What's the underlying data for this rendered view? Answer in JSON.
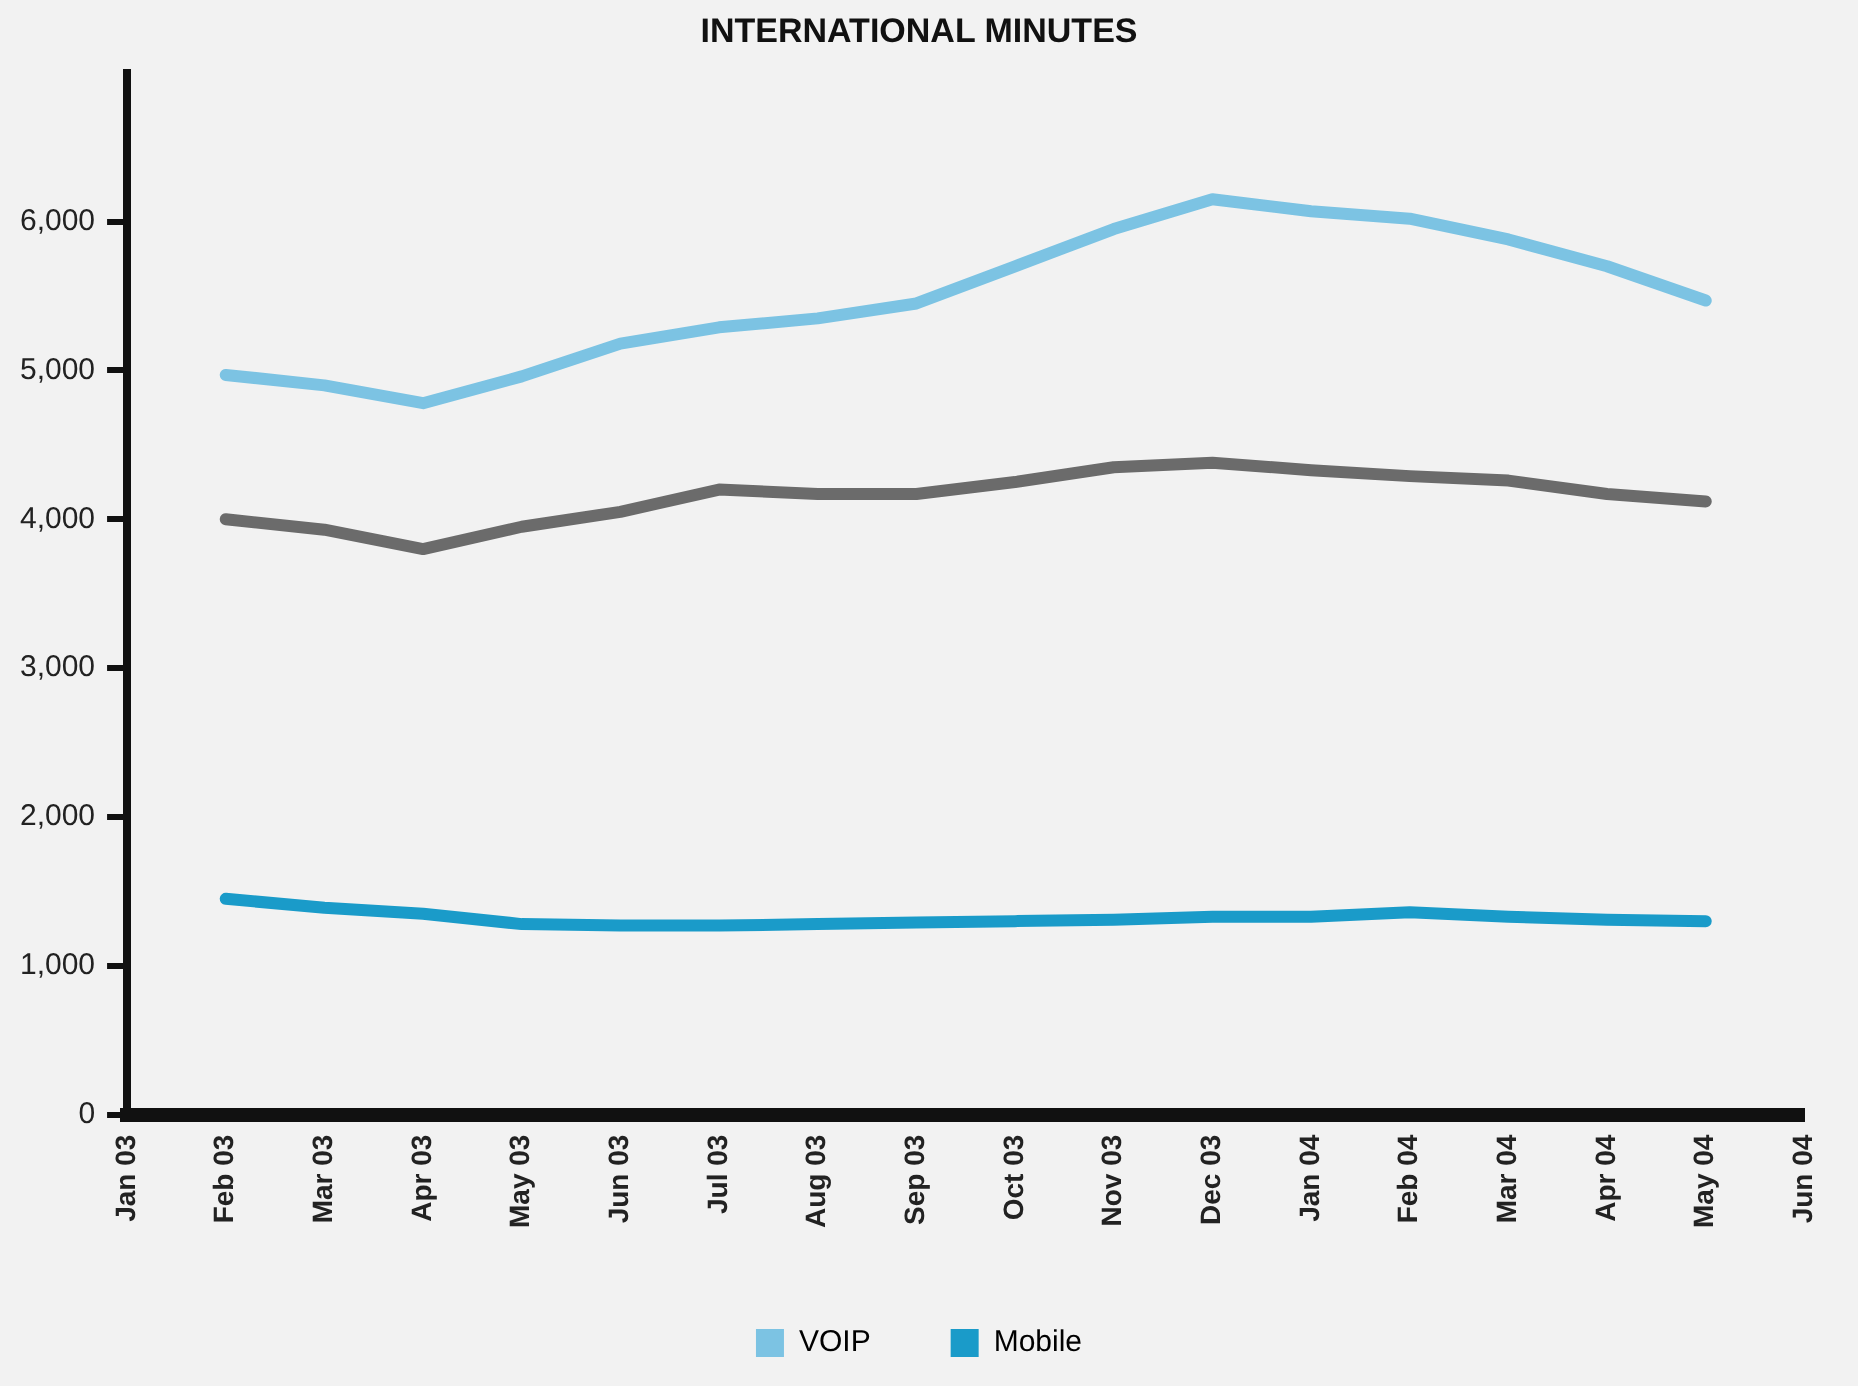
{
  "chart_data": {
    "type": "line",
    "title": "INTERNATIONAL MINUTES",
    "categories": [
      "Jan 03",
      "Feb 03",
      "Mar 03",
      "Apr 03",
      "May 03",
      "Jun 03",
      "Jul 03",
      "Aug 03",
      "Sep 03",
      "Oct 03",
      "Nov 03",
      "Dec 03",
      "Jan 04",
      "Feb 04",
      "Mar 04",
      "Apr 04",
      "May 04",
      "Jun 04"
    ],
    "series": [
      {
        "name": "VOIP",
        "color": "#7cc3e3",
        "values": [
          null,
          4970,
          4900,
          4780,
          4960,
          5180,
          5290,
          5350,
          5450,
          5700,
          5950,
          6150,
          6070,
          6020,
          5880,
          5700,
          5470,
          null
        ]
      },
      {
        "color": "#6b6b6b",
        "values": [
          null,
          4000,
          3930,
          3800,
          3950,
          4050,
          4200,
          4170,
          4170,
          4250,
          4350,
          4380,
          4330,
          4290,
          4260,
          4170,
          4120,
          null
        ]
      },
      {
        "name": "Mobile",
        "color": "#1a9bc9",
        "values": [
          null,
          1450,
          1390,
          1350,
          1280,
          1270,
          1270,
          1280,
          1290,
          1300,
          1310,
          1330,
          1330,
          1360,
          1330,
          1310,
          1300,
          null
        ]
      }
    ],
    "ylim": [
      0,
      7000
    ],
    "yticks": [
      0,
      {
        "value": 1000,
        "label": "1,000"
      },
      {
        "value": 2000,
        "label": "2,000"
      },
      {
        "value": 3000,
        "label": "3,000"
      },
      {
        "value": 4000,
        "label": "4,000"
      },
      {
        "value": 5000,
        "label": "5,000"
      },
      {
        "value": 6000,
        "label": "6,000"
      }
    ],
    "grid": false,
    "legend": "bottom",
    "marker": "none",
    "line_style": "solid"
  }
}
